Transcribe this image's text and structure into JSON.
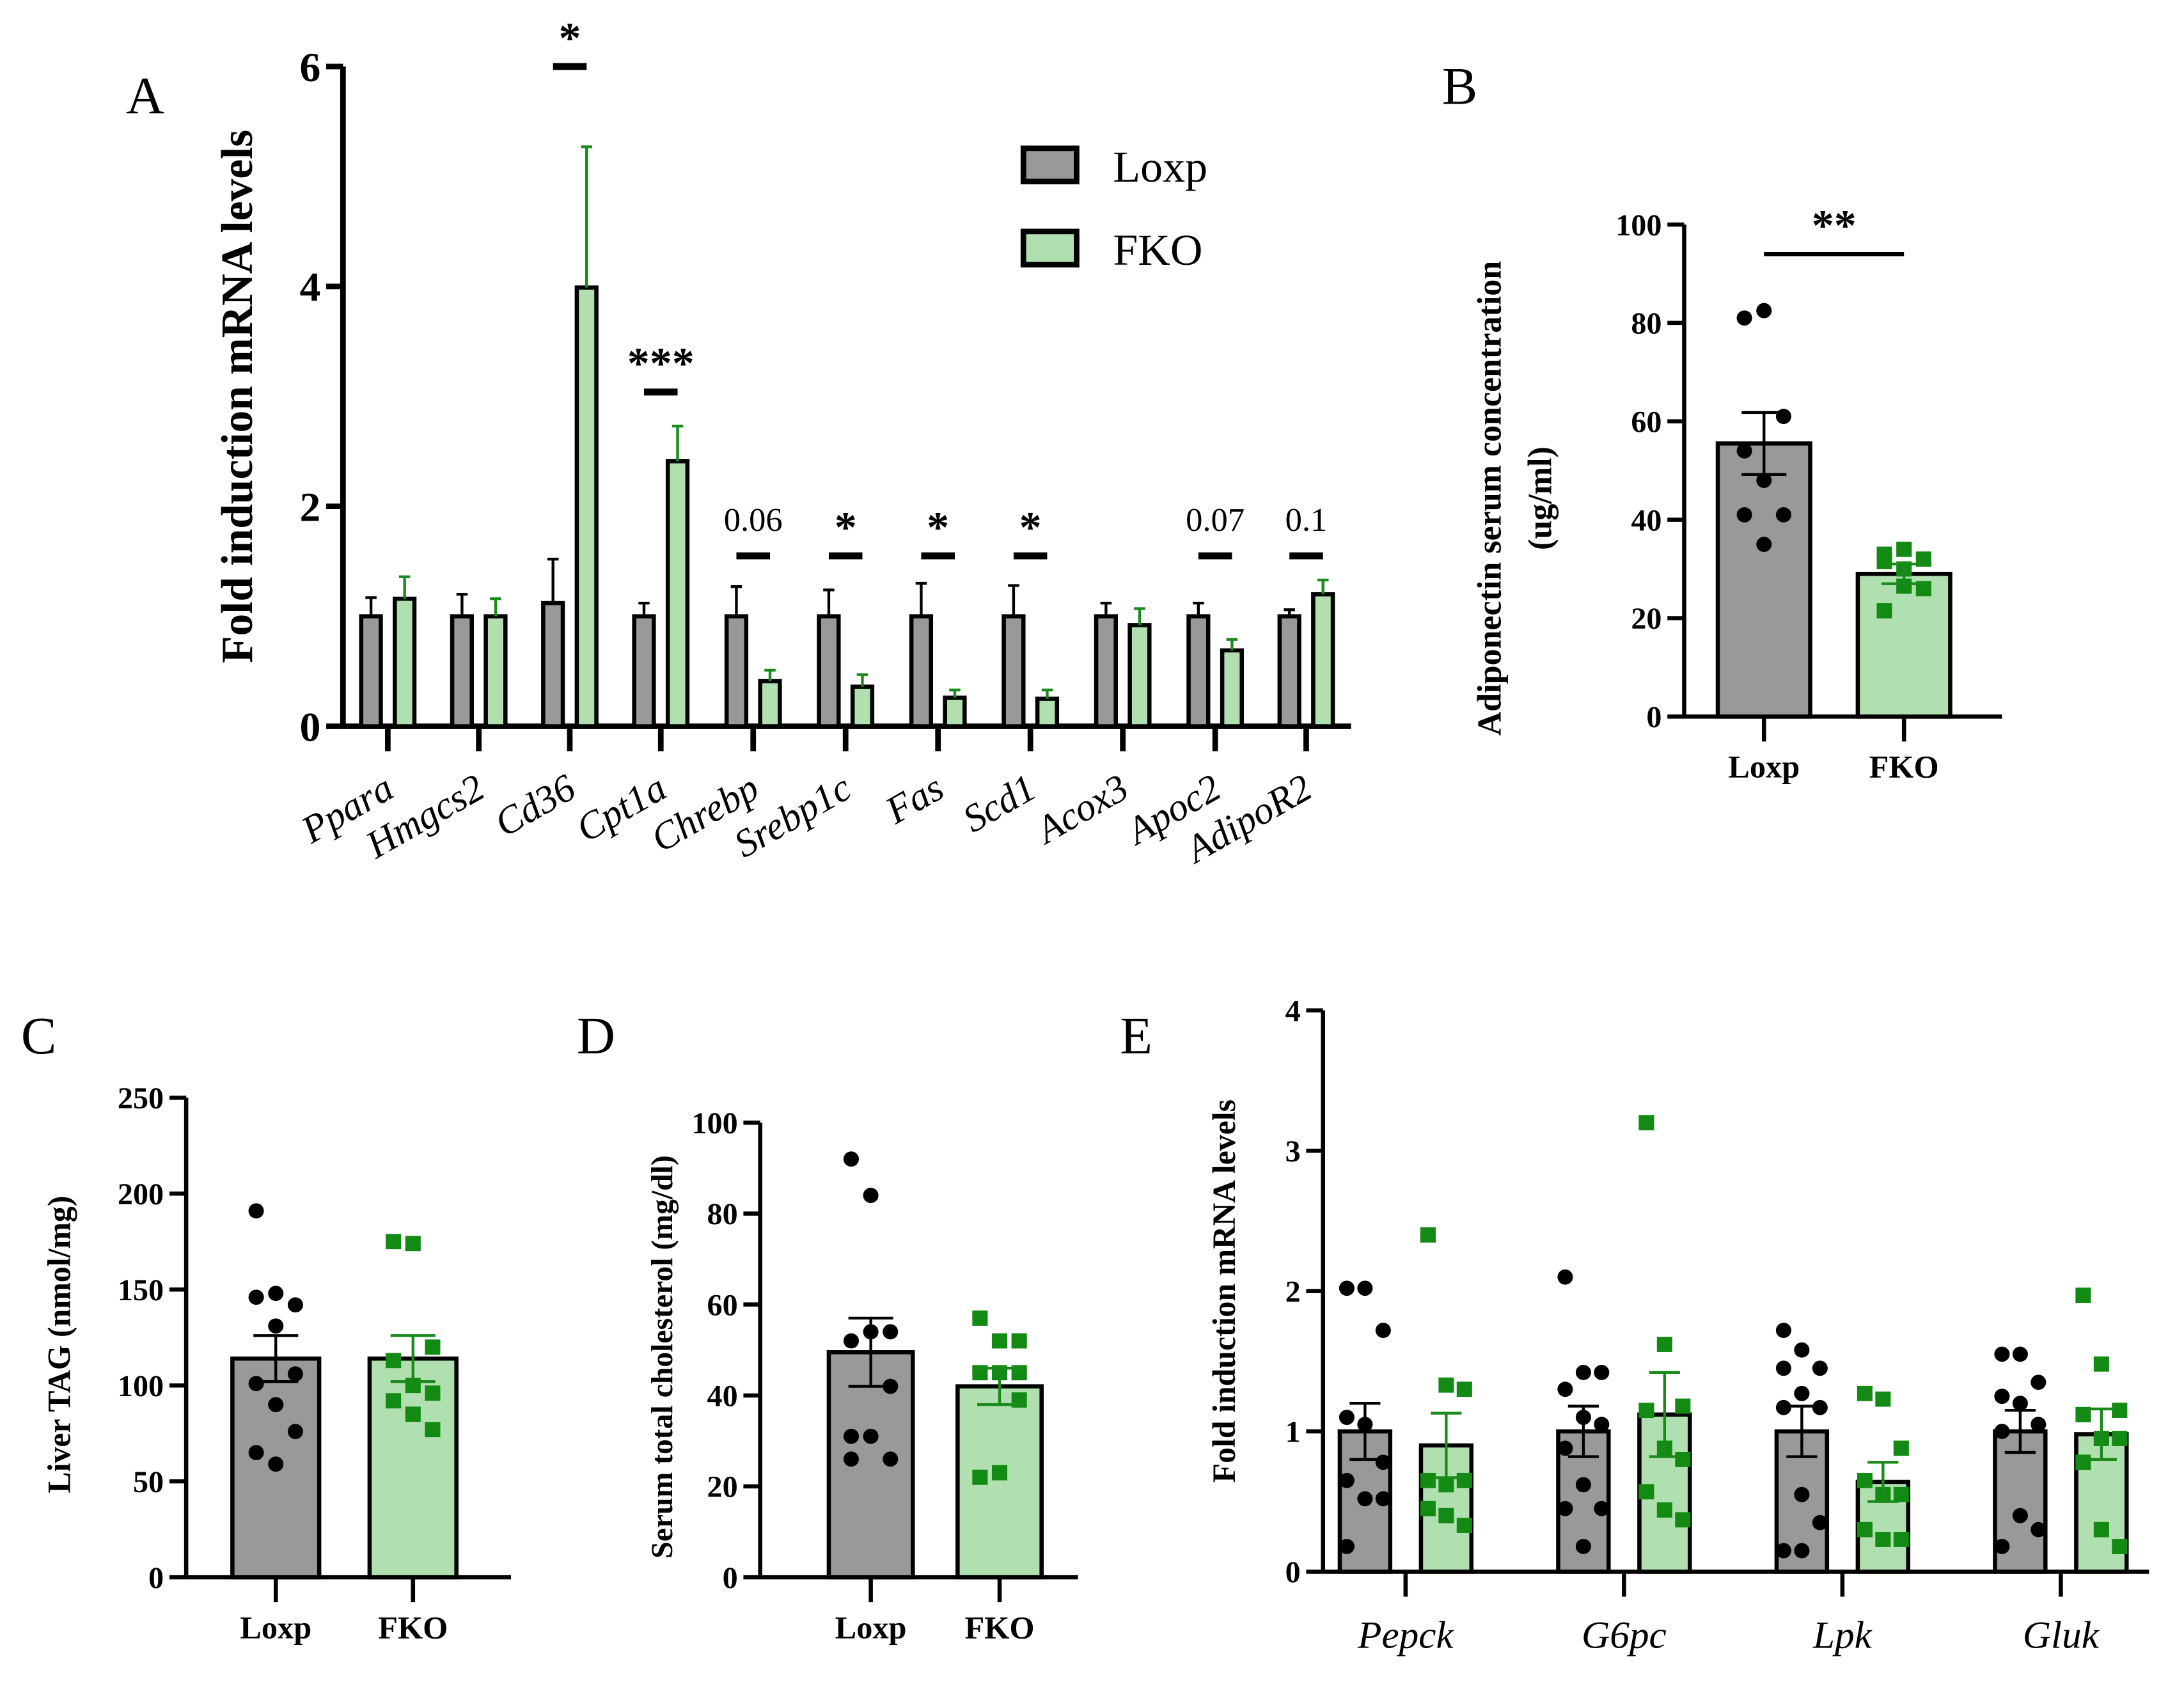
{
  "colors": {
    "loxp": "#999999",
    "fko": "#b0e0b0",
    "fko_point": "#138a13",
    "fko_err": "#1a8a1a",
    "loxp_point": "#000000"
  },
  "chart_data": [
    {
      "panel": "A",
      "type": "bar",
      "ylabel": "Fold induction mRNA levels",
      "ylim": [
        0,
        6
      ],
      "yticks": [
        "0",
        "2",
        "4",
        "6"
      ],
      "ytick_values": [
        0,
        2,
        4,
        6
      ],
      "legend": {
        "placement": "top-right",
        "entries": [
          "Loxp",
          "FKO"
        ]
      },
      "categories": [
        "Ppara",
        "Hmgcs2",
        "Cd36",
        "Cpt1a",
        "Chrebp",
        "Srebp1c",
        "Fas",
        "Scd1",
        "Acox3",
        "Apoc2",
        "AdipoR2"
      ],
      "series": [
        {
          "name": "Loxp",
          "values": [
            1,
            1,
            1.12,
            1,
            1,
            1,
            1,
            1,
            1,
            1,
            1
          ],
          "errors": [
            0.17,
            0.2,
            0.4,
            0.12,
            0.27,
            0.24,
            0.3,
            0.28,
            0.12,
            0.12,
            0.06
          ]
        },
        {
          "name": "FKO",
          "values": [
            1.16,
            1.0,
            3.99,
            2.41,
            0.41,
            0.36,
            0.26,
            0.25,
            0.92,
            0.69,
            1.2
          ],
          "errors": [
            0.2,
            0.16,
            1.28,
            0.32,
            0.1,
            0.11,
            0.07,
            0.08,
            0.15,
            0.1,
            0.13
          ]
        }
      ],
      "annotations": [
        {
          "category": "Cd36",
          "text": "*",
          "level": 6.0
        },
        {
          "category": "Cpt1a",
          "text": "***",
          "level": 3.04
        },
        {
          "category": "Chrebp",
          "text": "0.06",
          "level": 1.55
        },
        {
          "category": "Srebp1c",
          "text": "*",
          "level": 1.55
        },
        {
          "category": "Fas",
          "text": "*",
          "level": 1.55
        },
        {
          "category": "Scd1",
          "text": "*",
          "level": 1.55
        },
        {
          "category": "Apoc2",
          "text": "0.07",
          "level": 1.55
        },
        {
          "category": "AdipoR2",
          "text": "0.1",
          "level": 1.55
        }
      ]
    },
    {
      "panel": "B",
      "type": "bar",
      "ylabel": [
        "Adiponectin serum concentration",
        "(ug/ml)"
      ],
      "ylim": [
        0,
        100
      ],
      "yticks": [
        "0",
        "20",
        "40",
        "60",
        "80",
        "100"
      ],
      "ytick_values": [
        0,
        20,
        40,
        60,
        80,
        100
      ],
      "categories": [
        "Loxp",
        "FKO"
      ],
      "values": [
        55.5,
        29
      ],
      "errors": [
        6.3,
        2
      ],
      "points": [
        [
          81,
          82.5,
          61,
          54,
          48,
          41,
          41,
          35
        ],
        [
          33,
          34,
          32,
          31.5,
          26.5,
          26,
          21.5,
          30
        ]
      ],
      "annotations": [
        {
          "text": "**",
          "level": 94
        }
      ]
    },
    {
      "panel": "C",
      "type": "bar",
      "ylabel": "Liver TAG (nmol/mg)",
      "ylim": [
        0,
        250
      ],
      "yticks": [
        "0",
        "50",
        "100",
        "150",
        "200",
        "250"
      ],
      "ytick_values": [
        0,
        50,
        100,
        150,
        200,
        250
      ],
      "categories": [
        "Loxp",
        "FKO"
      ],
      "values": [
        114,
        114
      ],
      "errors": [
        12,
        12
      ],
      "points": [
        [
          191,
          148,
          142,
          146,
          131,
          106,
          101,
          90,
          76,
          65,
          59
        ],
        [
          175,
          174,
          120,
          113,
          100,
          96,
          92,
          85,
          77
        ]
      ]
    },
    {
      "panel": "D",
      "type": "bar",
      "ylabel": "Serum total cholesterol (mg/dl)",
      "ylim": [
        0,
        100
      ],
      "yticks": [
        "0",
        "20",
        "40",
        "60",
        "80",
        "100"
      ],
      "ytick_values": [
        0,
        20,
        40,
        60,
        80,
        100
      ],
      "categories": [
        "Loxp",
        "FKO"
      ],
      "values": [
        49.5,
        42
      ],
      "errors": [
        7.5,
        4
      ],
      "points": [
        [
          92,
          84,
          54,
          52,
          54,
          42,
          31,
          31,
          26,
          26
        ],
        [
          57,
          52,
          52,
          45,
          45,
          39,
          22,
          23,
          45
        ]
      ]
    },
    {
      "panel": "E",
      "type": "bar",
      "ylabel": "Fold induction mRNA levels",
      "ylim": [
        0,
        4
      ],
      "yticks": [
        "0",
        "1",
        "2",
        "3",
        "4"
      ],
      "ytick_values": [
        0,
        1,
        2,
        3,
        4
      ],
      "categories": [
        "Pepck",
        "G6pc",
        "Lpk",
        "Gluk"
      ],
      "series": [
        {
          "name": "Loxp",
          "values": [
            1,
            1,
            1,
            1
          ],
          "errors": [
            0.2,
            0.18,
            0.18,
            0.15
          ],
          "points": [
            [
              2.02,
              2.02,
              1.72,
              1.1,
              1.05,
              0.78,
              0.65,
              0.52,
              0.52,
              0.18
            ],
            [
              2.1,
              1.42,
              1.42,
              1.3,
              1.1,
              1.05,
              0.88,
              0.62,
              0.45,
              0.45,
              0.18
            ],
            [
              1.72,
              1.58,
              1.45,
              1.45,
              1.27,
              1.17,
              1.17,
              0.55,
              0.35,
              0.15,
              0.15
            ],
            [
              1.55,
              1.55,
              1.35,
              1.25,
              1.2,
              1.05,
              1.0,
              0.4,
              0.3,
              0.18
            ]
          ]
        },
        {
          "name": "FKO",
          "values": [
            0.9,
            1.12,
            0.64,
            0.98
          ],
          "errors": [
            0.23,
            0.3,
            0.14,
            0.18
          ],
          "points": [
            [
              2.4,
              1.33,
              1.3,
              0.65,
              0.62,
              0.65,
              0.45,
              0.4,
              0.33
            ],
            [
              3.2,
              1.62,
              1.18,
              1.15,
              0.88,
              0.8,
              0.57,
              0.44,
              0.37
            ],
            [
              1.27,
              1.23,
              0.88,
              0.65,
              0.55,
              0.55,
              0.3,
              0.23,
              0.23
            ],
            [
              1.97,
              1.48,
              1.15,
              1.12,
              0.95,
              0.95,
              0.78,
              0.3,
              0.18
            ]
          ]
        }
      ]
    }
  ]
}
